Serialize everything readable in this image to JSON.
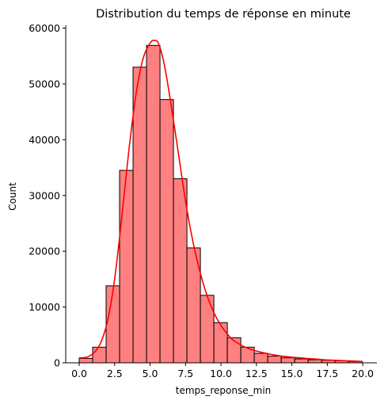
{
  "chart_data": {
    "type": "bar",
    "title": "Distribution du temps de réponse en minute",
    "xlabel": "temps_reponse_min",
    "ylabel": "Count",
    "xlim": [
      -0.95,
      21.0
    ],
    "ylim": [
      0,
      60500
    ],
    "x_ticks": [
      0.0,
      2.5,
      5.0,
      7.5,
      10.0,
      12.5,
      15.0,
      17.5,
      20.0
    ],
    "x_tick_labels": [
      "0.0",
      "2.5",
      "5.0",
      "7.5",
      "10.0",
      "12.5",
      "15.0",
      "17.5",
      "20.0"
    ],
    "y_ticks": [
      0,
      10000,
      20000,
      30000,
      40000,
      50000,
      60000
    ],
    "y_tick_labels": [
      "0",
      "10000",
      "20000",
      "30000",
      "40000",
      "50000",
      "60000"
    ],
    "bin_edges": [
      0.0,
      0.95,
      1.9,
      2.85,
      3.8,
      4.75,
      5.7,
      6.65,
      7.6,
      8.55,
      9.5,
      10.45,
      11.4,
      12.35,
      13.3,
      14.25,
      15.2,
      16.15,
      17.1,
      18.05,
      19.0,
      19.95
    ],
    "values": [
      800,
      2800,
      13800,
      34500,
      53000,
      56900,
      47200,
      33000,
      20600,
      12100,
      7200,
      4500,
      2800,
      1700,
      1200,
      900,
      700,
      550,
      450,
      350,
      250
    ],
    "kde": {
      "x": [
        0.0,
        0.5,
        1.0,
        1.5,
        2.0,
        2.5,
        3.0,
        3.5,
        4.0,
        4.5,
        5.0,
        5.3,
        5.6,
        6.0,
        6.5,
        7.0,
        7.5,
        8.0,
        8.5,
        9.0,
        9.5,
        10.0,
        10.5,
        11.0,
        12.0,
        13.0,
        14.0,
        15.0,
        16.0,
        17.0,
        18.0,
        19.0,
        20.0
      ],
      "y": [
        900,
        1000,
        1700,
        3500,
        7500,
        15000,
        26000,
        38000,
        48000,
        54500,
        57300,
        57800,
        57200,
        53500,
        46000,
        37500,
        29000,
        22000,
        16500,
        12200,
        9000,
        6700,
        5000,
        3800,
        2500,
        1800,
        1300,
        1000,
        800,
        600,
        450,
        350,
        250
      ]
    },
    "colors": {
      "bar_fill": "#ff8080",
      "bar_edge": "#000000",
      "kde": "#ff0000"
    },
    "grid": false,
    "legend": "none"
  }
}
